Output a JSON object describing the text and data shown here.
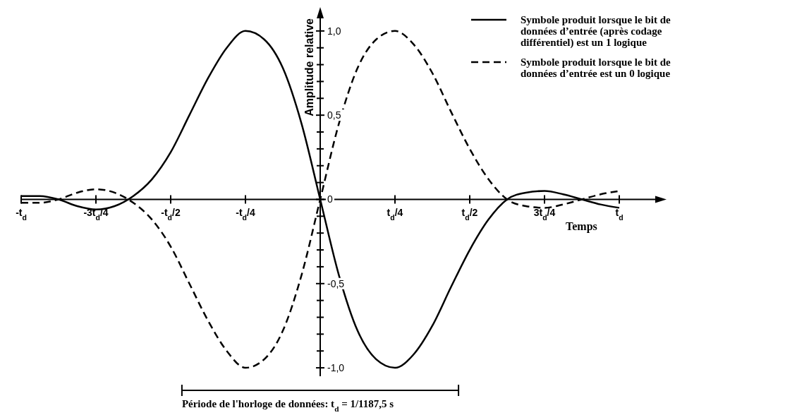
{
  "chart_data": {
    "type": "line",
    "xlabel": "Temps",
    "ylabel": "Amplitude relative",
    "categories": [
      "-t$_{d}$",
      null,
      null,
      null,
      "-3t$_{d}$/4",
      null,
      null,
      null,
      "-t$_{d}$/2",
      null,
      null,
      null,
      "-t$_{d}$/4",
      null,
      null,
      null,
      null,
      null,
      null,
      null,
      "t$_{d}$/4",
      null,
      null,
      null,
      "t$_{d}$/2",
      null,
      null,
      null,
      "3t$_{d}$/4",
      null,
      null,
      null,
      "t$_{d}$"
    ],
    "series": [
      {
        "name": "Symbole produit lorsque le bit de données d’entrée (après codage différentiel) est un 1 logique",
        "color": "#000000",
        "line_style": "solid",
        "values": [
          0.02,
          0.02,
          0,
          -0.04,
          -0.06,
          -0.04,
          0.02,
          0.12,
          0.28,
          0.5,
          0.72,
          0.9,
          1,
          0.95,
          0.78,
          0.45,
          0,
          -0.45,
          -0.78,
          -0.95,
          -1,
          -0.92,
          -0.75,
          -0.52,
          -0.3,
          -0.12,
          0,
          0.04,
          0.05,
          0.03,
          0,
          -0.03,
          -0.05
        ]
      },
      {
        "name": "Symbole produit lorsque le bit de données d’entrée est un 0 logique",
        "color": "#000000",
        "line_style": "dashed",
        "values": [
          -0.02,
          -0.02,
          0,
          0.04,
          0.06,
          0.04,
          -0.02,
          -0.12,
          -0.28,
          -0.5,
          -0.72,
          -0.9,
          -1,
          -0.95,
          -0.78,
          -0.45,
          0,
          0.45,
          0.78,
          0.95,
          1,
          0.92,
          0.75,
          0.52,
          0.3,
          0.12,
          0,
          -0.04,
          -0.05,
          -0.03,
          0,
          0.03,
          0.05
        ]
      }
    ],
    "ylim": [
      -1.05,
      1.1
    ],
    "yticks": [
      {
        "value": -1,
        "label": "-1,0"
      },
      {
        "value": -0.5,
        "label": "-0,5"
      },
      {
        "value": 0,
        "label": "0"
      },
      {
        "value": 0.5,
        "label": "0,5"
      },
      {
        "value": 1,
        "label": "1,0"
      }
    ],
    "annotations": [
      "Période de l'horloge de données: t$_{d}$ = 1/1187,5 s"
    ],
    "legend": "top right",
    "grid": false
  }
}
